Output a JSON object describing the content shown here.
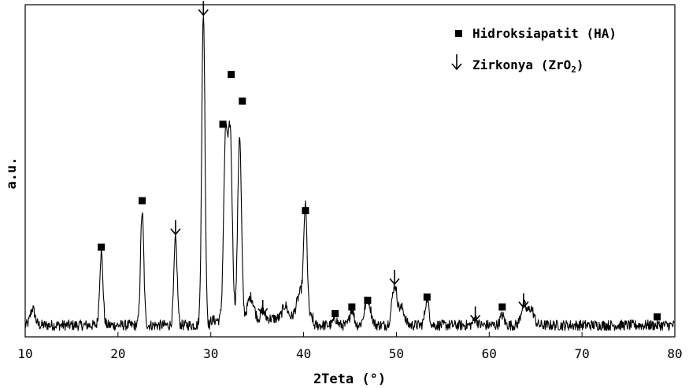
{
  "chart_data": {
    "type": "line",
    "xlabel": "2Teta (°)",
    "ylabel": "a.u.",
    "xlim": [
      10,
      80
    ],
    "ylim": [
      0,
      100
    ],
    "x_ticks": [
      10,
      20,
      30,
      40,
      50,
      60,
      70,
      80
    ],
    "grid": false,
    "legend_position": "top-right",
    "legend": [
      {
        "marker": "square",
        "label": "Hidroksiapatit (HA)"
      },
      {
        "marker": "down-arrow",
        "label_main": "Zirkonya (ZrO",
        "label_sub": "2",
        "label_end": ")"
      }
    ],
    "peaks": [
      {
        "x": 10.8,
        "h": 5,
        "w": 0.35
      },
      {
        "x": 18.2,
        "h": 22,
        "w": 0.25
      },
      {
        "x": 22.6,
        "h": 34,
        "w": 0.25
      },
      {
        "x": 26.2,
        "h": 26,
        "w": 0.25
      },
      {
        "x": 29.2,
        "h": 94,
        "w": 0.25
      },
      {
        "x": 31.6,
        "h": 55,
        "w": 0.3
      },
      {
        "x": 32.1,
        "h": 55,
        "w": 0.3
      },
      {
        "x": 33.1,
        "h": 56,
        "w": 0.28
      },
      {
        "x": 34.3,
        "h": 7,
        "w": 0.5
      },
      {
        "x": 35.6,
        "h": 3,
        "w": 0.3
      },
      {
        "x": 38.0,
        "h": 4,
        "w": 0.4
      },
      {
        "x": 39.7,
        "h": 8,
        "w": 0.6
      },
      {
        "x": 40.2,
        "h": 30,
        "w": 0.25
      },
      {
        "x": 43.4,
        "h": 2,
        "w": 0.3
      },
      {
        "x": 45.2,
        "h": 5,
        "w": 0.3
      },
      {
        "x": 46.9,
        "h": 8,
        "w": 0.45
      },
      {
        "x": 49.8,
        "h": 12,
        "w": 0.4
      },
      {
        "x": 50.6,
        "h": 5,
        "w": 0.4
      },
      {
        "x": 53.3,
        "h": 8,
        "w": 0.3
      },
      {
        "x": 58.5,
        "h": 2,
        "w": 0.3
      },
      {
        "x": 61.4,
        "h": 3,
        "w": 0.3
      },
      {
        "x": 63.7,
        "h": 6,
        "w": 0.4
      },
      {
        "x": 64.5,
        "h": 5,
        "w": 0.45
      }
    ],
    "markers": [
      {
        "type": "square",
        "x": 18.2,
        "y": 27
      },
      {
        "type": "square",
        "x": 22.6,
        "y": 41
      },
      {
        "type": "square",
        "x": 31.3,
        "y": 64
      },
      {
        "type": "square",
        "x": 32.2,
        "y": 79
      },
      {
        "type": "square",
        "x": 33.4,
        "y": 71
      },
      {
        "type": "square",
        "x": 40.2,
        "y": 38
      },
      {
        "type": "square",
        "x": 43.4,
        "y": 7
      },
      {
        "type": "square",
        "x": 45.2,
        "y": 9
      },
      {
        "type": "square",
        "x": 46.9,
        "y": 11
      },
      {
        "type": "square",
        "x": 53.3,
        "y": 12
      },
      {
        "type": "square",
        "x": 61.4,
        "y": 9
      },
      {
        "type": "square",
        "x": 78.1,
        "y": 6
      },
      {
        "type": "arrow",
        "x": 26.2,
        "y": 33
      },
      {
        "type": "arrow",
        "x": 29.2,
        "y": 99
      },
      {
        "type": "arrow",
        "x": 35.6,
        "y": 9
      },
      {
        "type": "arrow",
        "x": 49.8,
        "y": 18
      },
      {
        "type": "arrow",
        "x": 58.5,
        "y": 7
      },
      {
        "type": "arrow",
        "x": 63.7,
        "y": 11
      }
    ]
  }
}
